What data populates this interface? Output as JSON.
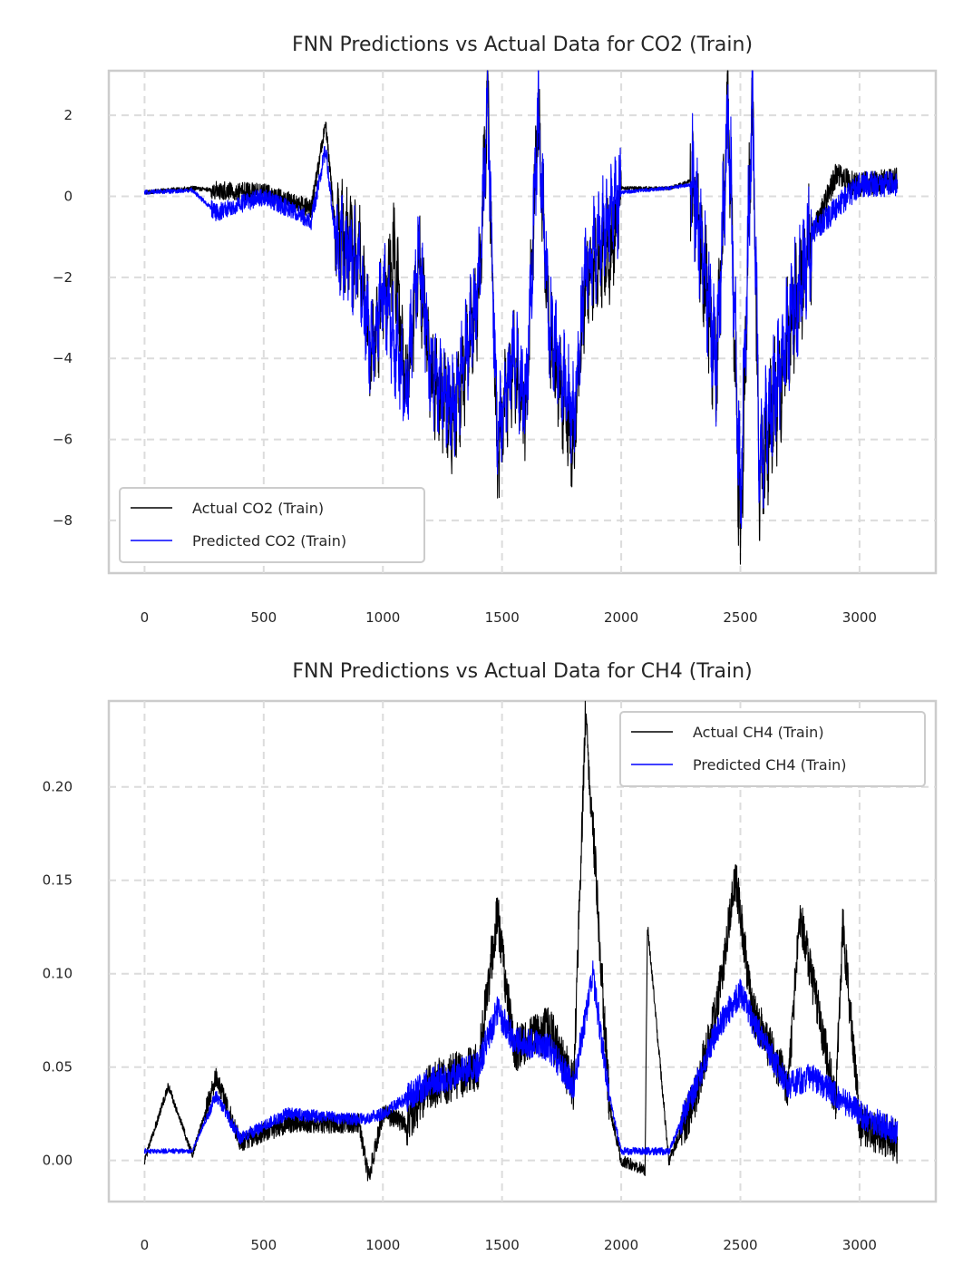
{
  "chart_data": [
    {
      "type": "line",
      "title": "FNN Predictions vs Actual Data for CO2 (Train)",
      "xlabel": "",
      "ylabel": "",
      "xlim": [
        -150,
        3320
      ],
      "ylim": [
        -9.3,
        3.1
      ],
      "xticks": [
        0,
        500,
        1000,
        1500,
        2000,
        2500,
        3000
      ],
      "yticks": [
        -8,
        -6,
        -4,
        -2,
        0,
        2
      ],
      "ytick_labels": [
        "−8",
        "−6",
        "−4",
        "−2",
        "0",
        "2"
      ],
      "grid": true,
      "legend": "lower-left",
      "n_points": 3160,
      "series": [
        {
          "name": "Actual CO2 (Train)",
          "color": "#000000",
          "points": [
            [
              0,
              0.1
            ],
            [
              200,
              0.2
            ],
            [
              300,
              0.15
            ],
            [
              500,
              0.1
            ],
            [
              700,
              -0.3
            ],
            [
              760,
              1.8
            ],
            [
              800,
              -0.8
            ],
            [
              900,
              -1.5
            ],
            [
              950,
              -4.0
            ],
            [
              1000,
              -2.5
            ],
            [
              1050,
              -1.5
            ],
            [
              1100,
              -5.0
            ],
            [
              1150,
              -1.5
            ],
            [
              1200,
              -4.5
            ],
            [
              1300,
              -5.5
            ],
            [
              1400,
              -2.5
            ],
            [
              1440,
              2.5
            ],
            [
              1480,
              -6.7
            ],
            [
              1500,
              -5.5
            ],
            [
              1550,
              -4.0
            ],
            [
              1600,
              -5.5
            ],
            [
              1650,
              2.1
            ],
            [
              1700,
              -3.5
            ],
            [
              1800,
              -6.2
            ],
            [
              1850,
              -2.0
            ],
            [
              1950,
              -1.5
            ],
            [
              2000,
              0.2
            ],
            [
              2200,
              0.2
            ],
            [
              2300,
              0.4
            ],
            [
              2350,
              -2.0
            ],
            [
              2400,
              -4.5
            ],
            [
              2450,
              2.5
            ],
            [
              2500,
              -8.8
            ],
            [
              2550,
              2.6
            ],
            [
              2580,
              -7.2
            ],
            [
              2650,
              -5.0
            ],
            [
              2700,
              -3.5
            ],
            [
              2800,
              -1.0
            ],
            [
              2900,
              0.5
            ],
            [
              3000,
              0.3
            ],
            [
              3160,
              0.4
            ]
          ]
        },
        {
          "name": "Predicted CO2 (Train)",
          "color": "#0000ff",
          "points": [
            [
              0,
              0.1
            ],
            [
              200,
              0.15
            ],
            [
              300,
              -0.4
            ],
            [
              500,
              0.0
            ],
            [
              700,
              -0.6
            ],
            [
              760,
              1.2
            ],
            [
              800,
              -1.0
            ],
            [
              900,
              -1.8
            ],
            [
              950,
              -3.8
            ],
            [
              1000,
              -2.3
            ],
            [
              1100,
              -4.8
            ],
            [
              1150,
              -1.3
            ],
            [
              1200,
              -4.2
            ],
            [
              1300,
              -5.2
            ],
            [
              1400,
              -2.3
            ],
            [
              1440,
              2.3
            ],
            [
              1480,
              -6.0
            ],
            [
              1550,
              -3.8
            ],
            [
              1600,
              -5.2
            ],
            [
              1650,
              2.0
            ],
            [
              1700,
              -3.2
            ],
            [
              1800,
              -5.5
            ],
            [
              1850,
              -1.8
            ],
            [
              2000,
              0.1
            ],
            [
              2200,
              0.2
            ],
            [
              2300,
              0.3
            ],
            [
              2350,
              -1.8
            ],
            [
              2400,
              -4.2
            ],
            [
              2450,
              2.2
            ],
            [
              2500,
              -7.5
            ],
            [
              2550,
              2.3
            ],
            [
              2580,
              -6.5
            ],
            [
              2650,
              -4.6
            ],
            [
              2800,
              -0.9
            ],
            [
              3000,
              0.3
            ],
            [
              3160,
              0.3
            ]
          ]
        }
      ]
    },
    {
      "type": "line",
      "title": "FNN Predictions vs Actual Data for CH4 (Train)",
      "xlabel": "",
      "ylabel": "",
      "xlim": [
        -150,
        3320
      ],
      "ylim": [
        -0.022,
        0.246
      ],
      "xticks": [
        0,
        500,
        1000,
        1500,
        2000,
        2500,
        3000
      ],
      "yticks": [
        0.0,
        0.05,
        0.1,
        0.15,
        0.2
      ],
      "ytick_labels": [
        "0.00",
        "0.05",
        "0.10",
        "0.15",
        "0.20"
      ],
      "grid": true,
      "legend": "upper-right",
      "n_points": 3160,
      "series": [
        {
          "name": "Actual CH4 (Train)",
          "color": "#000000",
          "points": [
            [
              0,
              0.0
            ],
            [
              100,
              0.04
            ],
            [
              200,
              0.003
            ],
            [
              300,
              0.045
            ],
            [
              400,
              0.01
            ],
            [
              600,
              0.02
            ],
            [
              900,
              0.02
            ],
            [
              940,
              -0.009
            ],
            [
              1000,
              0.025
            ],
            [
              1100,
              0.02
            ],
            [
              1200,
              0.04
            ],
            [
              1400,
              0.05
            ],
            [
              1480,
              0.133
            ],
            [
              1550,
              0.06
            ],
            [
              1700,
              0.07
            ],
            [
              1800,
              0.04
            ],
            [
              1850,
              0.237
            ],
            [
              1880,
              0.182
            ],
            [
              1950,
              0.03
            ],
            [
              2000,
              0.0
            ],
            [
              2100,
              -0.005
            ],
            [
              2110,
              0.126
            ],
            [
              2200,
              0.0
            ],
            [
              2300,
              0.03
            ],
            [
              2400,
              0.08
            ],
            [
              2480,
              0.153
            ],
            [
              2550,
              0.08
            ],
            [
              2700,
              0.04
            ],
            [
              2750,
              0.132
            ],
            [
              2900,
              0.03
            ],
            [
              2930,
              0.126
            ],
            [
              3000,
              0.02
            ],
            [
              3160,
              0.01
            ]
          ]
        },
        {
          "name": "Predicted CH4 (Train)",
          "color": "#0000ff",
          "points": [
            [
              0,
              0.005
            ],
            [
              200,
              0.005
            ],
            [
              300,
              0.035
            ],
            [
              400,
              0.012
            ],
            [
              600,
              0.025
            ],
            [
              900,
              0.022
            ],
            [
              1000,
              0.025
            ],
            [
              1200,
              0.042
            ],
            [
              1400,
              0.05
            ],
            [
              1480,
              0.08
            ],
            [
              1550,
              0.065
            ],
            [
              1700,
              0.06
            ],
            [
              1800,
              0.04
            ],
            [
              1880,
              0.1
            ],
            [
              1950,
              0.035
            ],
            [
              2000,
              0.005
            ],
            [
              2200,
              0.005
            ],
            [
              2300,
              0.035
            ],
            [
              2400,
              0.07
            ],
            [
              2500,
              0.09
            ],
            [
              2550,
              0.075
            ],
            [
              2700,
              0.04
            ],
            [
              2800,
              0.045
            ],
            [
              2900,
              0.035
            ],
            [
              3000,
              0.025
            ],
            [
              3160,
              0.015
            ]
          ]
        }
      ]
    }
  ]
}
